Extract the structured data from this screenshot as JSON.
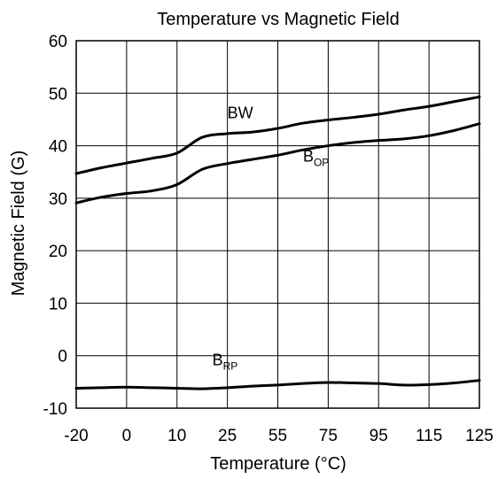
{
  "chart_data": {
    "type": "line",
    "title": "Temperature vs Magnetic Field",
    "xlabel": "Temperature (°C)",
    "ylabel": "Magnetic Field (G)",
    "x_categories": [
      "-20",
      "0",
      "10",
      "25",
      "55",
      "75",
      "95",
      "115",
      "125"
    ],
    "ylim": [
      -10,
      60
    ],
    "y_ticks": [
      "60",
      "50",
      "40",
      "30",
      "20",
      "10",
      "0",
      "-10"
    ],
    "grid": true,
    "series": [
      {
        "name": "BW",
        "label_main": "BW",
        "label_sub": "",
        "x_positions": [
          0,
          0.5,
          1,
          1.5,
          2,
          2.5,
          3,
          3.5,
          4,
          4.5,
          5,
          5.5,
          6,
          6.5,
          7,
          7.5,
          8
        ],
        "values": [
          34.7,
          35.8,
          36.7,
          37.6,
          38.6,
          41.6,
          42.3,
          42.6,
          43.3,
          44.3,
          44.9,
          45.4,
          46.0,
          46.8,
          47.5,
          48.4,
          49.3
        ]
      },
      {
        "name": "BOP",
        "label_main": "B",
        "label_sub": "OP",
        "x_positions": [
          0,
          0.5,
          1,
          1.5,
          2,
          2.5,
          3,
          3.5,
          4,
          4.5,
          5,
          5.5,
          6,
          6.5,
          7,
          7.5,
          8
        ],
        "values": [
          29.1,
          30.2,
          30.9,
          31.4,
          32.6,
          35.5,
          36.6,
          37.4,
          38.2,
          39.2,
          40.0,
          40.6,
          41.0,
          41.3,
          41.9,
          42.9,
          44.2
        ]
      },
      {
        "name": "BRP",
        "label_main": "B",
        "label_sub": "RP",
        "x_positions": [
          0,
          0.5,
          1,
          1.5,
          2,
          2.5,
          3,
          3.5,
          4,
          4.5,
          5,
          5.5,
          6,
          6.5,
          7,
          7.5,
          8
        ],
        "values": [
          -6.2,
          -6.1,
          -6.0,
          -6.1,
          -6.2,
          -6.3,
          -6.1,
          -5.8,
          -5.6,
          -5.3,
          -5.1,
          -5.2,
          -5.3,
          -5.6,
          -5.5,
          -5.2,
          -4.7
        ]
      }
    ],
    "labels_at": [
      {
        "series": "BW",
        "x": 3.0,
        "y": 45.2
      },
      {
        "series": "BOP",
        "x": 4.5,
        "y": 37.0
      },
      {
        "series": "BRP",
        "x": 2.7,
        "y": -1.8
      }
    ]
  }
}
